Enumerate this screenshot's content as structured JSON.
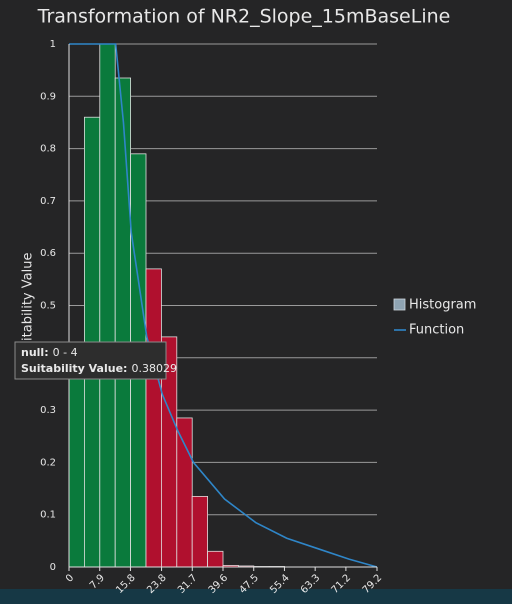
{
  "chart_data": {
    "type": "histogram",
    "title": "Transformation of NR2_Slope_15mBaseLine",
    "y_label": "Suitability Value",
    "xlim": [
      0,
      79.2
    ],
    "ylim": [
      0,
      1
    ],
    "xticks": [
      0,
      7.9,
      15.8,
      23.8,
      31.7,
      39.6,
      47.5,
      55.4,
      63.3,
      71.2,
      79.2
    ],
    "yticks": [
      0,
      0.1,
      0.2,
      0.3,
      0.4,
      0.5,
      0.6,
      0.7,
      0.8,
      0.9,
      1
    ],
    "grid": true,
    "histogram": {
      "name": "Histogram",
      "color": "#8fa4b3",
      "bins": [
        0,
        3.96,
        7.92,
        11.88,
        15.84,
        19.8,
        23.76,
        27.72,
        31.68,
        35.64,
        39.6,
        43.56,
        47.52,
        51.48,
        55.44,
        59.4,
        63.36,
        67.32,
        71.28,
        75.24,
        79.2
      ],
      "counts": [
        0.4,
        0.86,
        1.0,
        0.935,
        0.79,
        0.57,
        0.44,
        0.285,
        0.135,
        0.03,
        0.003,
        0.002,
        0.001,
        0.001,
        0,
        0,
        0,
        0,
        0,
        0
      ],
      "colors": [
        "#0a7a3c",
        "#0a7a3c",
        "#0a7a3c",
        "#0a7a3c",
        "#0a7a3c",
        "#b0102e",
        "#b0102e",
        "#b0102e",
        "#b0102e",
        "#b0102e",
        "#b0102e",
        "#b0102e",
        "#b0102e",
        "#b0102e",
        "#b0102e",
        "#b0102e",
        "#b0102e",
        "#b0102e",
        "#b0102e",
        "#b0102e"
      ]
    },
    "function": {
      "name": "Function",
      "color": "#2f86c8",
      "x": [
        0,
        12,
        14,
        16,
        20,
        24,
        28,
        32,
        40,
        48,
        56,
        64,
        72,
        79.2
      ],
      "y": [
        1,
        1,
        0.85,
        0.64,
        0.44,
        0.33,
        0.26,
        0.2,
        0.13,
        0.085,
        0.055,
        0.035,
        0.015,
        0
      ]
    },
    "tooltip": {
      "line1_key": "null:",
      "line1_value": "0 - 4",
      "line2_key": "Suitability Value:",
      "line2_value": "0.38029"
    }
  }
}
